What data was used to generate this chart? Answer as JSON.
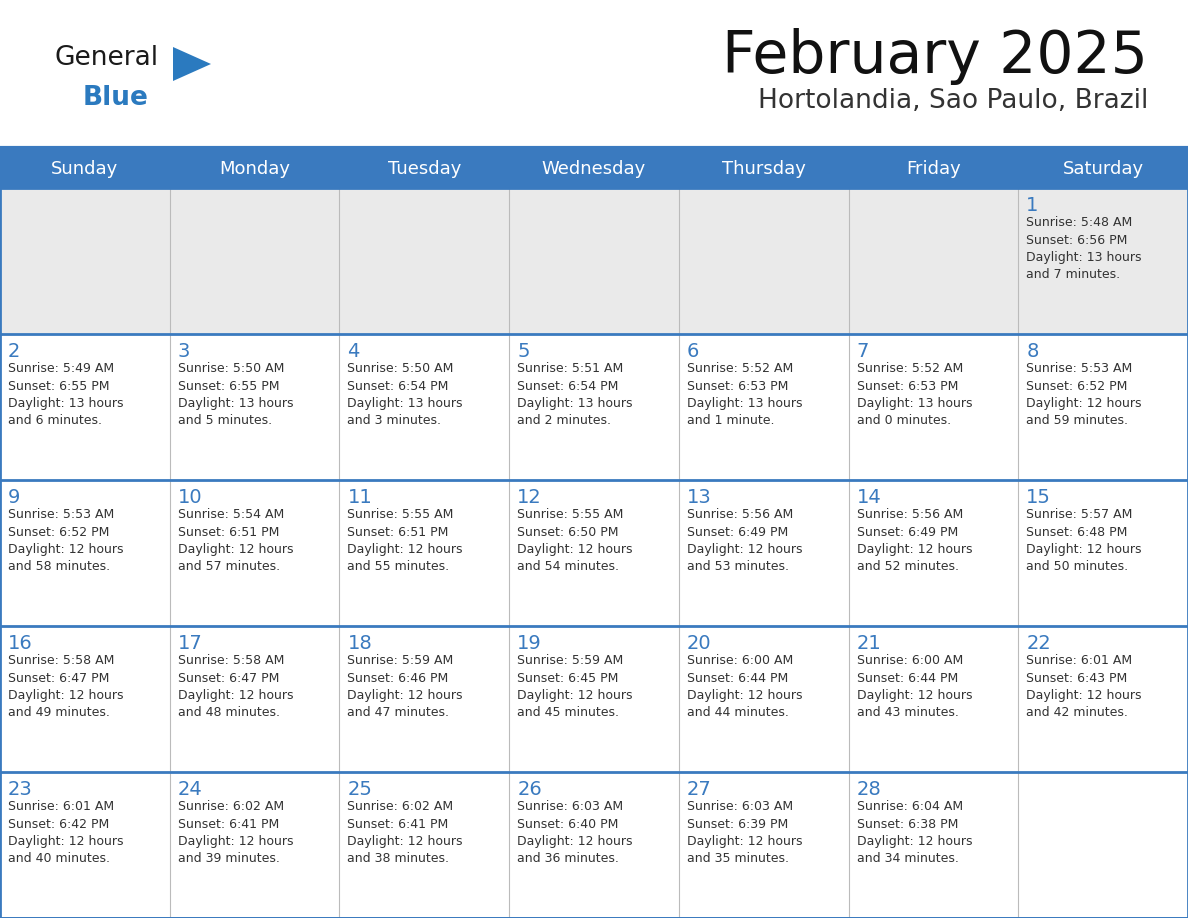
{
  "title": "February 2025",
  "subtitle": "Hortolandia, Sao Paulo, Brazil",
  "header_bg_color": "#3a7abf",
  "header_text_color": "#ffffff",
  "week1_bg_color": "#eaeaea",
  "cell_bg_color": "#ffffff",
  "border_color": "#3a7abf",
  "divider_color": "#3a7abf",
  "text_color": "#333333",
  "day_number_color": "#3a7abf",
  "logo_general_color": "#1a1a1a",
  "logo_blue_color": "#2b7abf",
  "logo_triangle_color": "#2b7abf",
  "days_of_week": [
    "Sunday",
    "Monday",
    "Tuesday",
    "Wednesday",
    "Thursday",
    "Friday",
    "Saturday"
  ],
  "weeks": [
    [
      {
        "day": "",
        "info": ""
      },
      {
        "day": "",
        "info": ""
      },
      {
        "day": "",
        "info": ""
      },
      {
        "day": "",
        "info": ""
      },
      {
        "day": "",
        "info": ""
      },
      {
        "day": "",
        "info": ""
      },
      {
        "day": "1",
        "info": "Sunrise: 5:48 AM\nSunset: 6:56 PM\nDaylight: 13 hours\nand 7 minutes."
      }
    ],
    [
      {
        "day": "2",
        "info": "Sunrise: 5:49 AM\nSunset: 6:55 PM\nDaylight: 13 hours\nand 6 minutes."
      },
      {
        "day": "3",
        "info": "Sunrise: 5:50 AM\nSunset: 6:55 PM\nDaylight: 13 hours\nand 5 minutes."
      },
      {
        "day": "4",
        "info": "Sunrise: 5:50 AM\nSunset: 6:54 PM\nDaylight: 13 hours\nand 3 minutes."
      },
      {
        "day": "5",
        "info": "Sunrise: 5:51 AM\nSunset: 6:54 PM\nDaylight: 13 hours\nand 2 minutes."
      },
      {
        "day": "6",
        "info": "Sunrise: 5:52 AM\nSunset: 6:53 PM\nDaylight: 13 hours\nand 1 minute."
      },
      {
        "day": "7",
        "info": "Sunrise: 5:52 AM\nSunset: 6:53 PM\nDaylight: 13 hours\nand 0 minutes."
      },
      {
        "day": "8",
        "info": "Sunrise: 5:53 AM\nSunset: 6:52 PM\nDaylight: 12 hours\nand 59 minutes."
      }
    ],
    [
      {
        "day": "9",
        "info": "Sunrise: 5:53 AM\nSunset: 6:52 PM\nDaylight: 12 hours\nand 58 minutes."
      },
      {
        "day": "10",
        "info": "Sunrise: 5:54 AM\nSunset: 6:51 PM\nDaylight: 12 hours\nand 57 minutes."
      },
      {
        "day": "11",
        "info": "Sunrise: 5:55 AM\nSunset: 6:51 PM\nDaylight: 12 hours\nand 55 minutes."
      },
      {
        "day": "12",
        "info": "Sunrise: 5:55 AM\nSunset: 6:50 PM\nDaylight: 12 hours\nand 54 minutes."
      },
      {
        "day": "13",
        "info": "Sunrise: 5:56 AM\nSunset: 6:49 PM\nDaylight: 12 hours\nand 53 minutes."
      },
      {
        "day": "14",
        "info": "Sunrise: 5:56 AM\nSunset: 6:49 PM\nDaylight: 12 hours\nand 52 minutes."
      },
      {
        "day": "15",
        "info": "Sunrise: 5:57 AM\nSunset: 6:48 PM\nDaylight: 12 hours\nand 50 minutes."
      }
    ],
    [
      {
        "day": "16",
        "info": "Sunrise: 5:58 AM\nSunset: 6:47 PM\nDaylight: 12 hours\nand 49 minutes."
      },
      {
        "day": "17",
        "info": "Sunrise: 5:58 AM\nSunset: 6:47 PM\nDaylight: 12 hours\nand 48 minutes."
      },
      {
        "day": "18",
        "info": "Sunrise: 5:59 AM\nSunset: 6:46 PM\nDaylight: 12 hours\nand 47 minutes."
      },
      {
        "day": "19",
        "info": "Sunrise: 5:59 AM\nSunset: 6:45 PM\nDaylight: 12 hours\nand 45 minutes."
      },
      {
        "day": "20",
        "info": "Sunrise: 6:00 AM\nSunset: 6:44 PM\nDaylight: 12 hours\nand 44 minutes."
      },
      {
        "day": "21",
        "info": "Sunrise: 6:00 AM\nSunset: 6:44 PM\nDaylight: 12 hours\nand 43 minutes."
      },
      {
        "day": "22",
        "info": "Sunrise: 6:01 AM\nSunset: 6:43 PM\nDaylight: 12 hours\nand 42 minutes."
      }
    ],
    [
      {
        "day": "23",
        "info": "Sunrise: 6:01 AM\nSunset: 6:42 PM\nDaylight: 12 hours\nand 40 minutes."
      },
      {
        "day": "24",
        "info": "Sunrise: 6:02 AM\nSunset: 6:41 PM\nDaylight: 12 hours\nand 39 minutes."
      },
      {
        "day": "25",
        "info": "Sunrise: 6:02 AM\nSunset: 6:41 PM\nDaylight: 12 hours\nand 38 minutes."
      },
      {
        "day": "26",
        "info": "Sunrise: 6:03 AM\nSunset: 6:40 PM\nDaylight: 12 hours\nand 36 minutes."
      },
      {
        "day": "27",
        "info": "Sunrise: 6:03 AM\nSunset: 6:39 PM\nDaylight: 12 hours\nand 35 minutes."
      },
      {
        "day": "28",
        "info": "Sunrise: 6:04 AM\nSunset: 6:38 PM\nDaylight: 12 hours\nand 34 minutes."
      },
      {
        "day": "",
        "info": ""
      }
    ]
  ]
}
